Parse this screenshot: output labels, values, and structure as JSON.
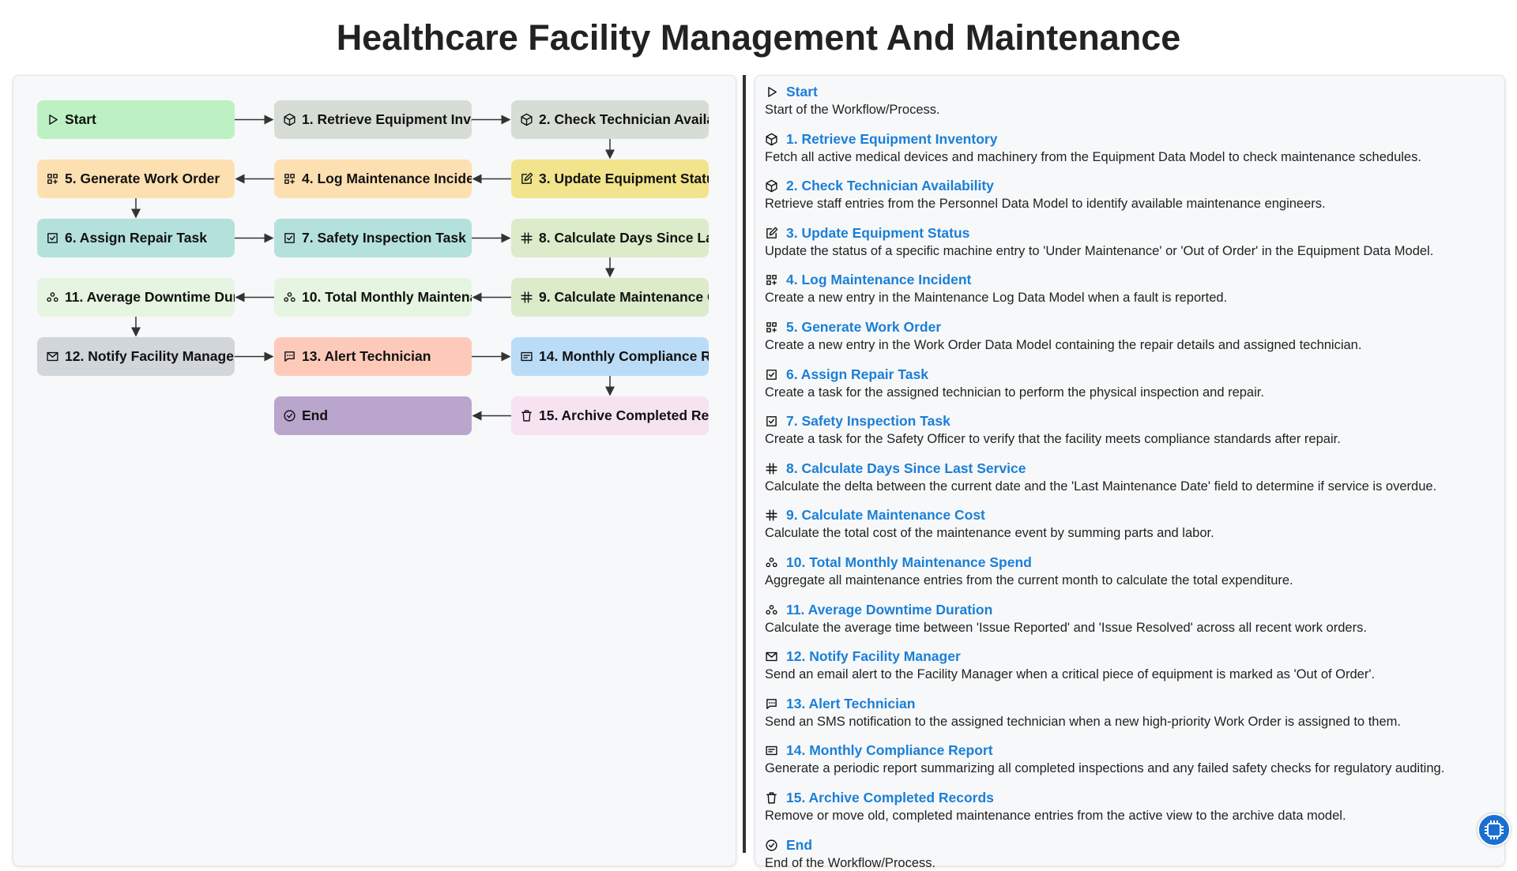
{
  "title": "Healthcare Facility Management And Maintenance",
  "nodes": [
    {
      "label": "Start",
      "description": "Start of the Workflow/Process.",
      "color": "#bdf1c3"
    },
    {
      "label": "1. Retrieve Equipment Inventory",
      "description": "Fetch all active medical devices and machinery from the Equipment Data Model to check maintenance schedules.",
      "color": "#d6ddd4"
    },
    {
      "label": "2. Check Technician Availability",
      "description": "Retrieve staff entries from the Personnel Data Model to identify available maintenance engineers.",
      "color": "#d6ddd4"
    },
    {
      "label": "3. Update Equipment Status",
      "description": "Update the status of a specific machine entry to 'Under Maintenance' or 'Out of Order' in the Equipment Data Model.",
      "color": "#f1e48c"
    },
    {
      "label": "4. Log Maintenance Incident",
      "description": "Create a new entry in the Maintenance Log Data Model when a fault is reported.",
      "color": "#fde0b2"
    },
    {
      "label": "5. Generate Work Order",
      "description": "Create a new entry in the Work Order Data Model containing the repair details and assigned technician.",
      "color": "#fde0b2"
    },
    {
      "label": "6. Assign Repair Task",
      "description": "Create a task for the assigned technician to perform the physical inspection and repair.",
      "color": "#b4e1dc"
    },
    {
      "label": "7. Safety Inspection Task",
      "description": "Create a task for the Safety Officer to verify that the facility meets compliance standards after repair.",
      "color": "#b4e1dc"
    },
    {
      "label": "8. Calculate Days Since Last Service",
      "description": "Calculate the delta between the current date and the 'Last Maintenance Date' field to determine if service is overdue.",
      "color": "#dcebc9"
    },
    {
      "label": "9. Calculate Maintenance Cost",
      "description": "Calculate the total cost of the maintenance event by summing parts and labor.",
      "color": "#dcebc9"
    },
    {
      "label": "10. Total Monthly Maintenance Spend",
      "description": "Aggregate all maintenance entries from the current month to calculate the total expenditure.",
      "color": "#e6f5e1"
    },
    {
      "label": "11. Average Downtime Duration",
      "description": "Calculate the average time between 'Issue Reported' and 'Issue Resolved' across all recent work orders.",
      "color": "#e6f5e1"
    },
    {
      "label": "12. Notify Facility Manager",
      "description": "Send an email alert to the Facility Manager when a critical piece of equipment is marked as 'Out of Order'.",
      "color": "#d1d6db"
    },
    {
      "label": "13. Alert Technician",
      "description": "Send an SMS notification to the assigned technician when a new high-priority Work Order is assigned to them.",
      "color": "#fdcab9"
    },
    {
      "label": "14. Monthly Compliance Report",
      "description": "Generate a periodic report summarizing all completed inspections and any failed safety checks for regulatory auditing.",
      "color": "#badcf7"
    },
    {
      "label": "15. Archive Completed Records",
      "description": "Remove or move old, completed maintenance entries from the active view to the archive data model.",
      "color": "#f7e2f2"
    },
    {
      "label": "End",
      "description": "End of the Workflow/Process.",
      "color": "#baa5cd"
    }
  ]
}
